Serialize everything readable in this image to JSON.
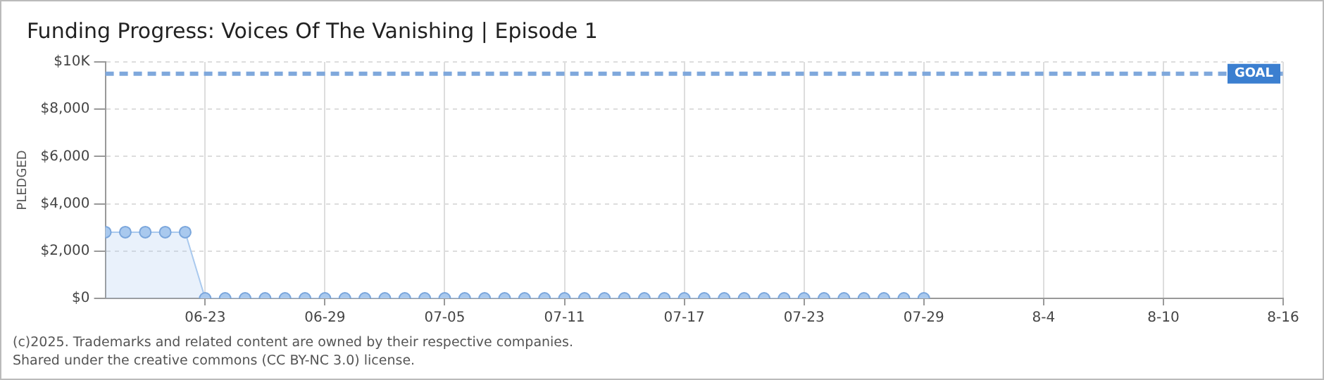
{
  "chart_data": {
    "type": "area",
    "title": "Funding Progress: Voices Of The Vanishing | Episode 1",
    "ylabel": "PLEDGED",
    "x": [
      "--06-18",
      "--06-19",
      "--06-20",
      "--06-21",
      "--06-22",
      "--06-23",
      "--06-24",
      "--06-25",
      "--06-26",
      "--06-27",
      "--06-28",
      "--06-29",
      "--06-30",
      "--07-01",
      "--07-02",
      "--07-03",
      "--07-04",
      "--07-05",
      "--07-06",
      "--07-07",
      "--07-08",
      "--07-09",
      "--07-10",
      "--07-11",
      "--07-12",
      "--07-13",
      "--07-14",
      "--07-15",
      "--07-16",
      "--07-17",
      "--07-18",
      "--07-19",
      "--07-20",
      "--07-21",
      "--07-22",
      "--07-23",
      "--07-24",
      "--07-25",
      "--07-26",
      "--07-27",
      "--07-28",
      "--07-29"
    ],
    "series": [
      {
        "color": "#a9c9ee",
        "values": [
          2800,
          2800,
          2800,
          2800,
          2800,
          0,
          0,
          0,
          0,
          0,
          0,
          0,
          0,
          0,
          0,
          0,
          0,
          0,
          0,
          0,
          0,
          0,
          0,
          0,
          0,
          0,
          0,
          0,
          0,
          0,
          0,
          0,
          0,
          0,
          0,
          0,
          0,
          0,
          0,
          0,
          0,
          0
        ]
      }
    ],
    "xlim": [
      "--06-18",
      "--08-16"
    ],
    "xticks": [
      {
        "value": "--06-23",
        "label": "06-23"
      },
      {
        "value": "--06-29",
        "label": "06-29"
      },
      {
        "value": "--07-05",
        "label": "07-05"
      },
      {
        "value": "--07-11",
        "label": "07-11"
      },
      {
        "value": "--07-17",
        "label": "07-17"
      },
      {
        "value": "--07-23",
        "label": "07-23"
      },
      {
        "value": "--07-29",
        "label": "07-29"
      },
      {
        "value": "--08-04",
        "label": "8-4"
      },
      {
        "value": "--08-10",
        "label": "8-10"
      },
      {
        "value": "--08-16",
        "label": "8-16"
      }
    ],
    "ylim": [
      0,
      10000
    ],
    "yticks": [
      {
        "value": 0,
        "label": "$0"
      },
      {
        "value": 2000,
        "label": "$2,000"
      },
      {
        "value": 4000,
        "label": "$4,000"
      },
      {
        "value": 6000,
        "label": "$6,000"
      },
      {
        "value": 8000,
        "label": "$8,000"
      },
      {
        "value": 10000,
        "label": "$10K"
      }
    ],
    "ref_lines": [
      {
        "axis": "y",
        "value": 9500,
        "label": "GOAL",
        "color": "#7fa8dc",
        "line_style": "dashed"
      }
    ],
    "grid": true,
    "legend": false,
    "marker": "circle",
    "line_style": "solid",
    "annotations": [
      "(c)2025. Trademarks and related content are owned by their respective companies.",
      "Shared under the creative commons (CC BY-NC 3.0) license."
    ]
  }
}
